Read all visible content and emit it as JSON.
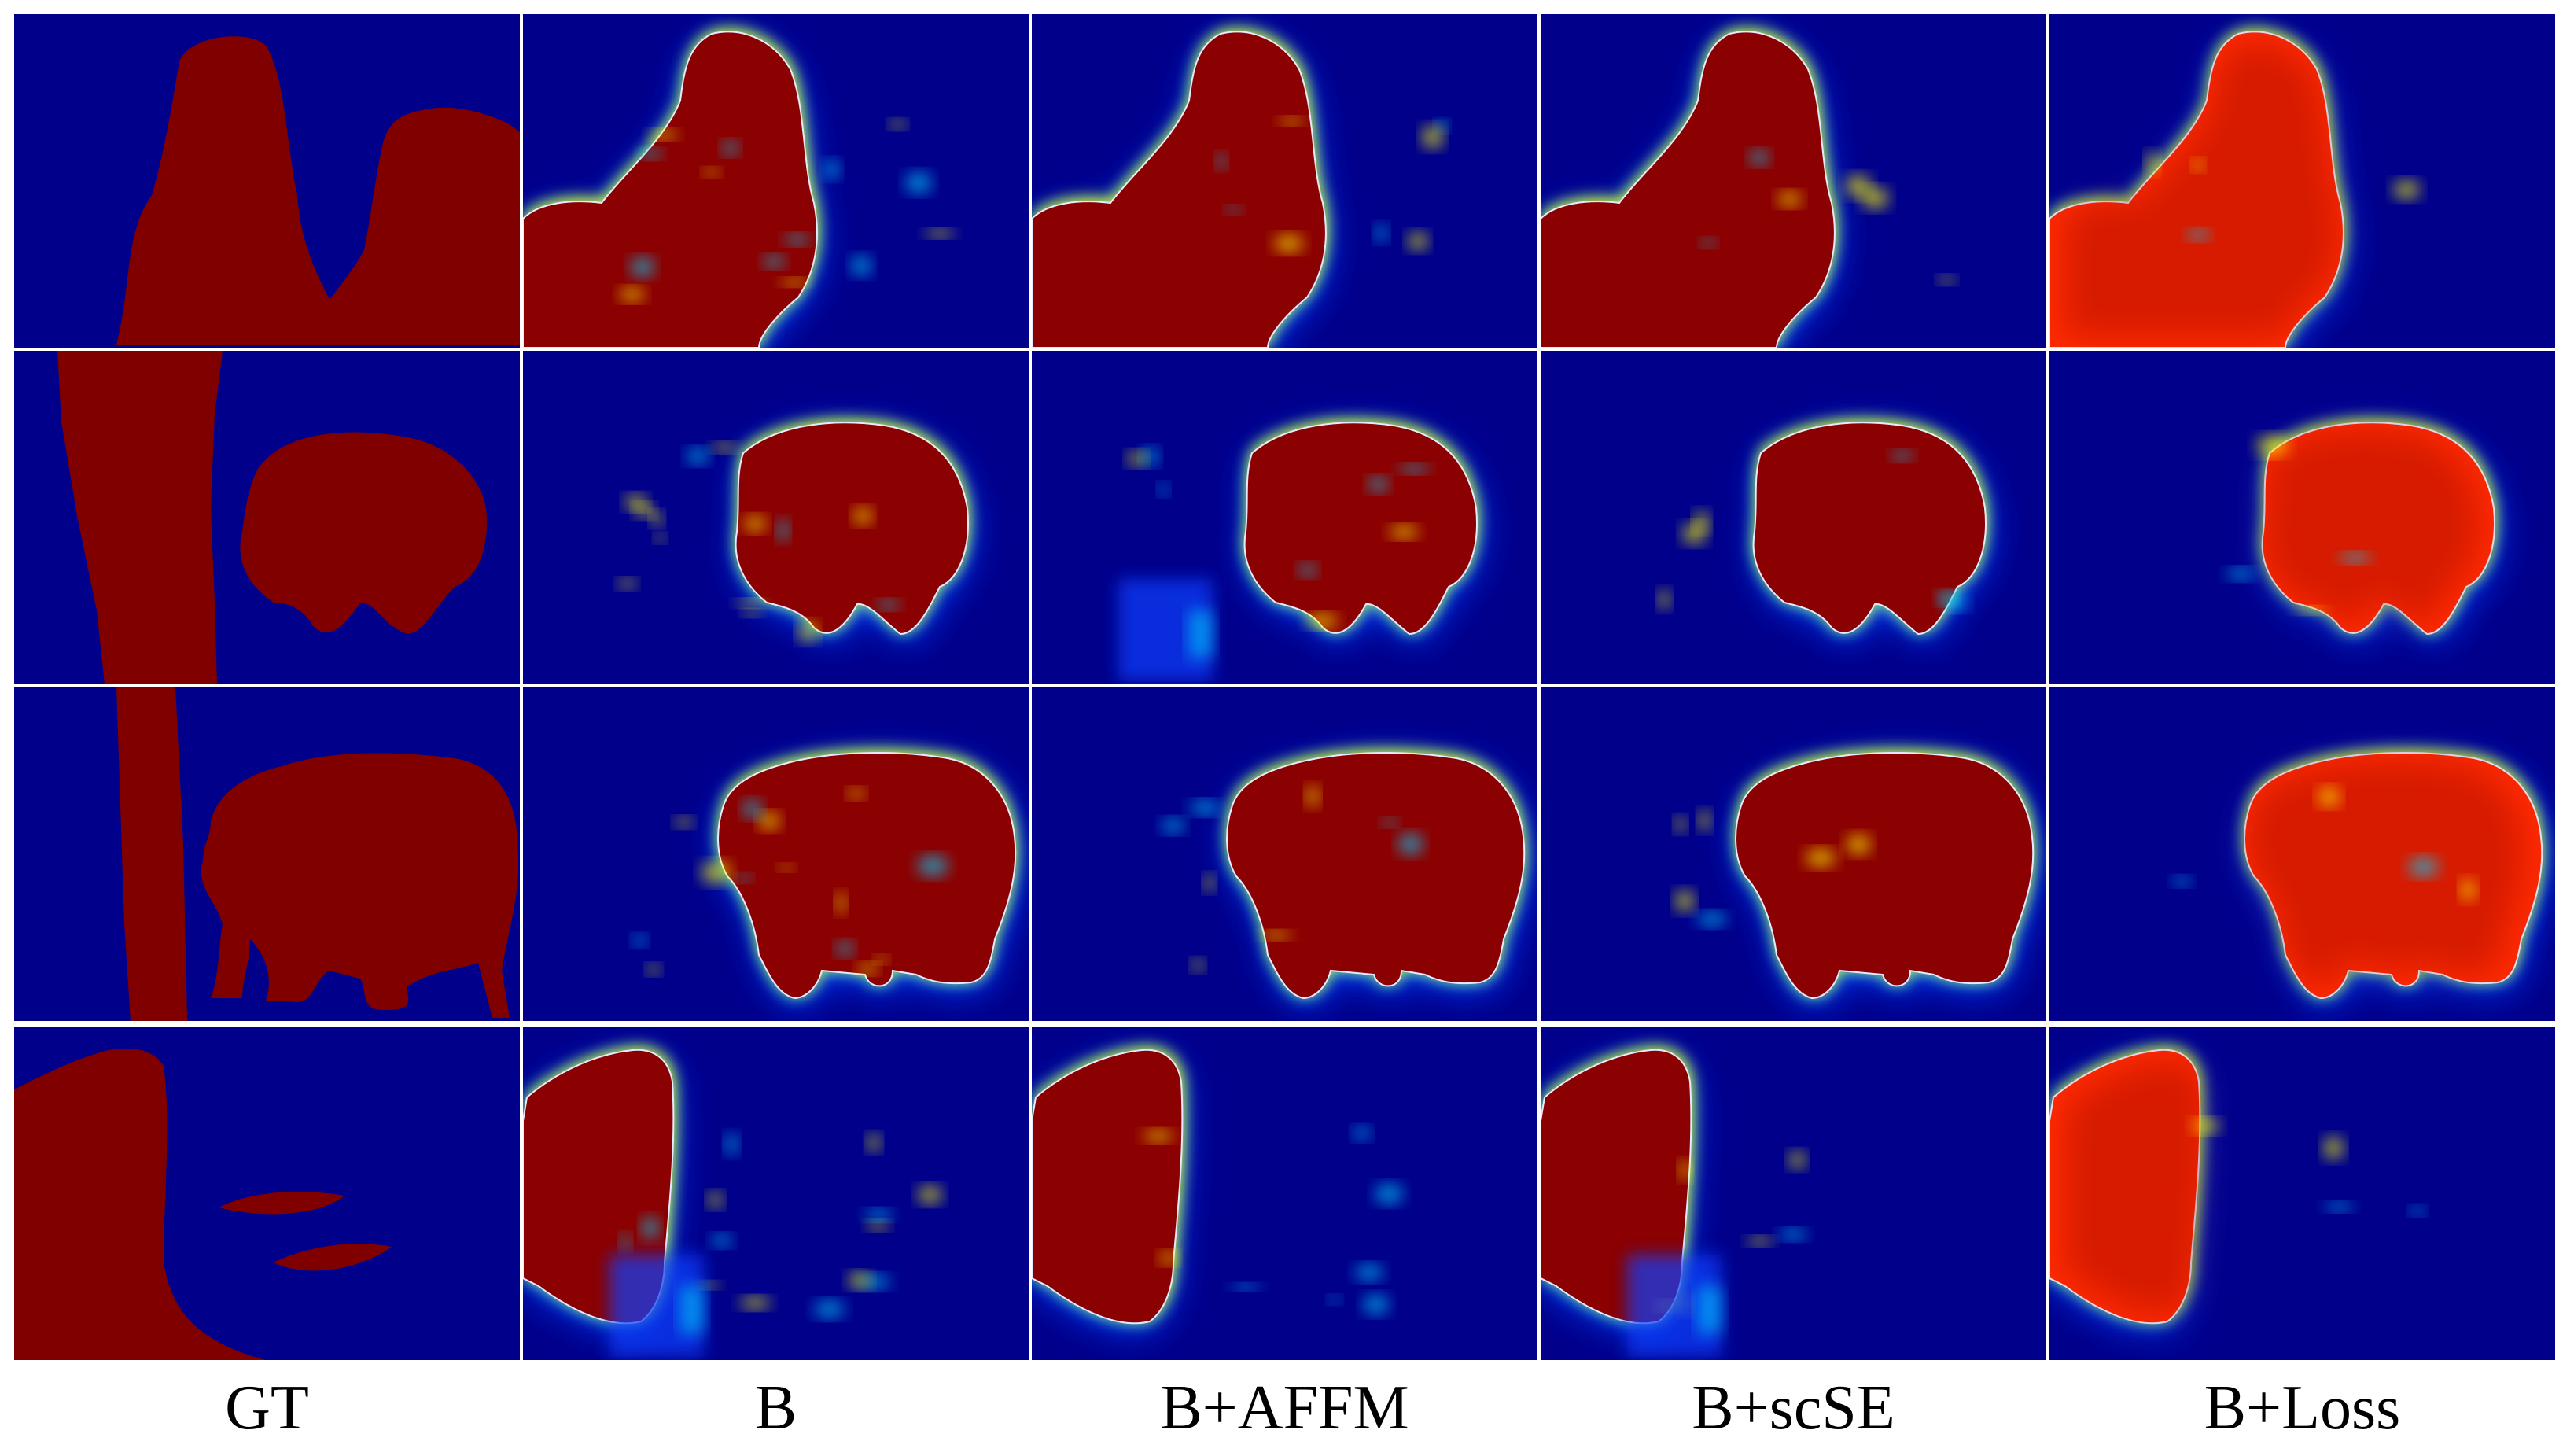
{
  "figure": {
    "columns": [
      "GT",
      "B",
      "B+AFFM",
      "B+scSE",
      "B+Loss"
    ],
    "rows": 4
  },
  "colors": {
    "background": "#00008b",
    "ground_truth": "#800000",
    "heat_high": "#8b0000",
    "heat_mid_high": "#ff2a00",
    "heat_mid": "#ffff00",
    "heat_low": "#00d0ff",
    "heat_edge": "#1040ff",
    "grid_line": "#ffffff"
  }
}
